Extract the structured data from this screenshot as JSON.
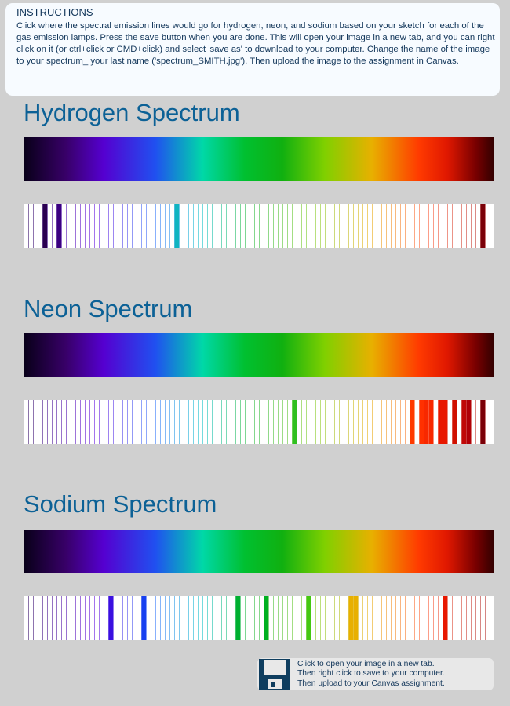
{
  "instructions": {
    "title": "INSTRUCTIONS",
    "body": "Click where the spectral emission lines would go for hydrogen, neon, and sodium based on your sketch for each of the gas emission lamps. Press the save button when you are done. This will open your image in a new tab, and you can right click on it (or ctrl+click or CMD+click) and select 'save as' to download to your computer. Change the name of the image to your spectrum_ your last name ('spectrum_SMITH.jpg'). Then upload the image to the assignment in Canvas."
  },
  "spectra": [
    {
      "title": "Hydrogen Spectrum",
      "active_lines": [
        {
          "index": 4,
          "color": "#2a0050"
        },
        {
          "index": 7,
          "color": "#3a0080"
        },
        {
          "index": 32,
          "color": "#10b4c0"
        },
        {
          "index": 97,
          "color": "#7a0008"
        }
      ]
    },
    {
      "title": "Neon Spectrum",
      "active_lines": [
        {
          "index": 57,
          "color": "#30c020"
        },
        {
          "index": 82,
          "color": "#ff3a00"
        },
        {
          "index": 84,
          "color": "#ff3000"
        },
        {
          "index": 85,
          "color": "#f82800"
        },
        {
          "index": 86,
          "color": "#f82800"
        },
        {
          "index": 88,
          "color": "#e81800"
        },
        {
          "index": 89,
          "color": "#e81800"
        },
        {
          "index": 91,
          "color": "#d01000"
        },
        {
          "index": 93,
          "color": "#c00808"
        },
        {
          "index": 94,
          "color": "#b00008"
        },
        {
          "index": 97,
          "color": "#7a0008"
        }
      ]
    },
    {
      "title": "Sodium Spectrum",
      "active_lines": [
        {
          "index": 18,
          "color": "#3a10e0"
        },
        {
          "index": 25,
          "color": "#1840f0"
        },
        {
          "index": 45,
          "color": "#00b030"
        },
        {
          "index": 51,
          "color": "#00b020"
        },
        {
          "index": 60,
          "color": "#44c810"
        },
        {
          "index": 69,
          "color": "#e8b000"
        },
        {
          "index": 70,
          "color": "#e8b000"
        },
        {
          "index": 89,
          "color": "#e81800"
        }
      ]
    }
  ],
  "save": {
    "line1": "Click to open your image in a new tab.",
    "line2": "Then right click to save to your computer.",
    "line3": "Then upload to your Canvas assignment."
  }
}
